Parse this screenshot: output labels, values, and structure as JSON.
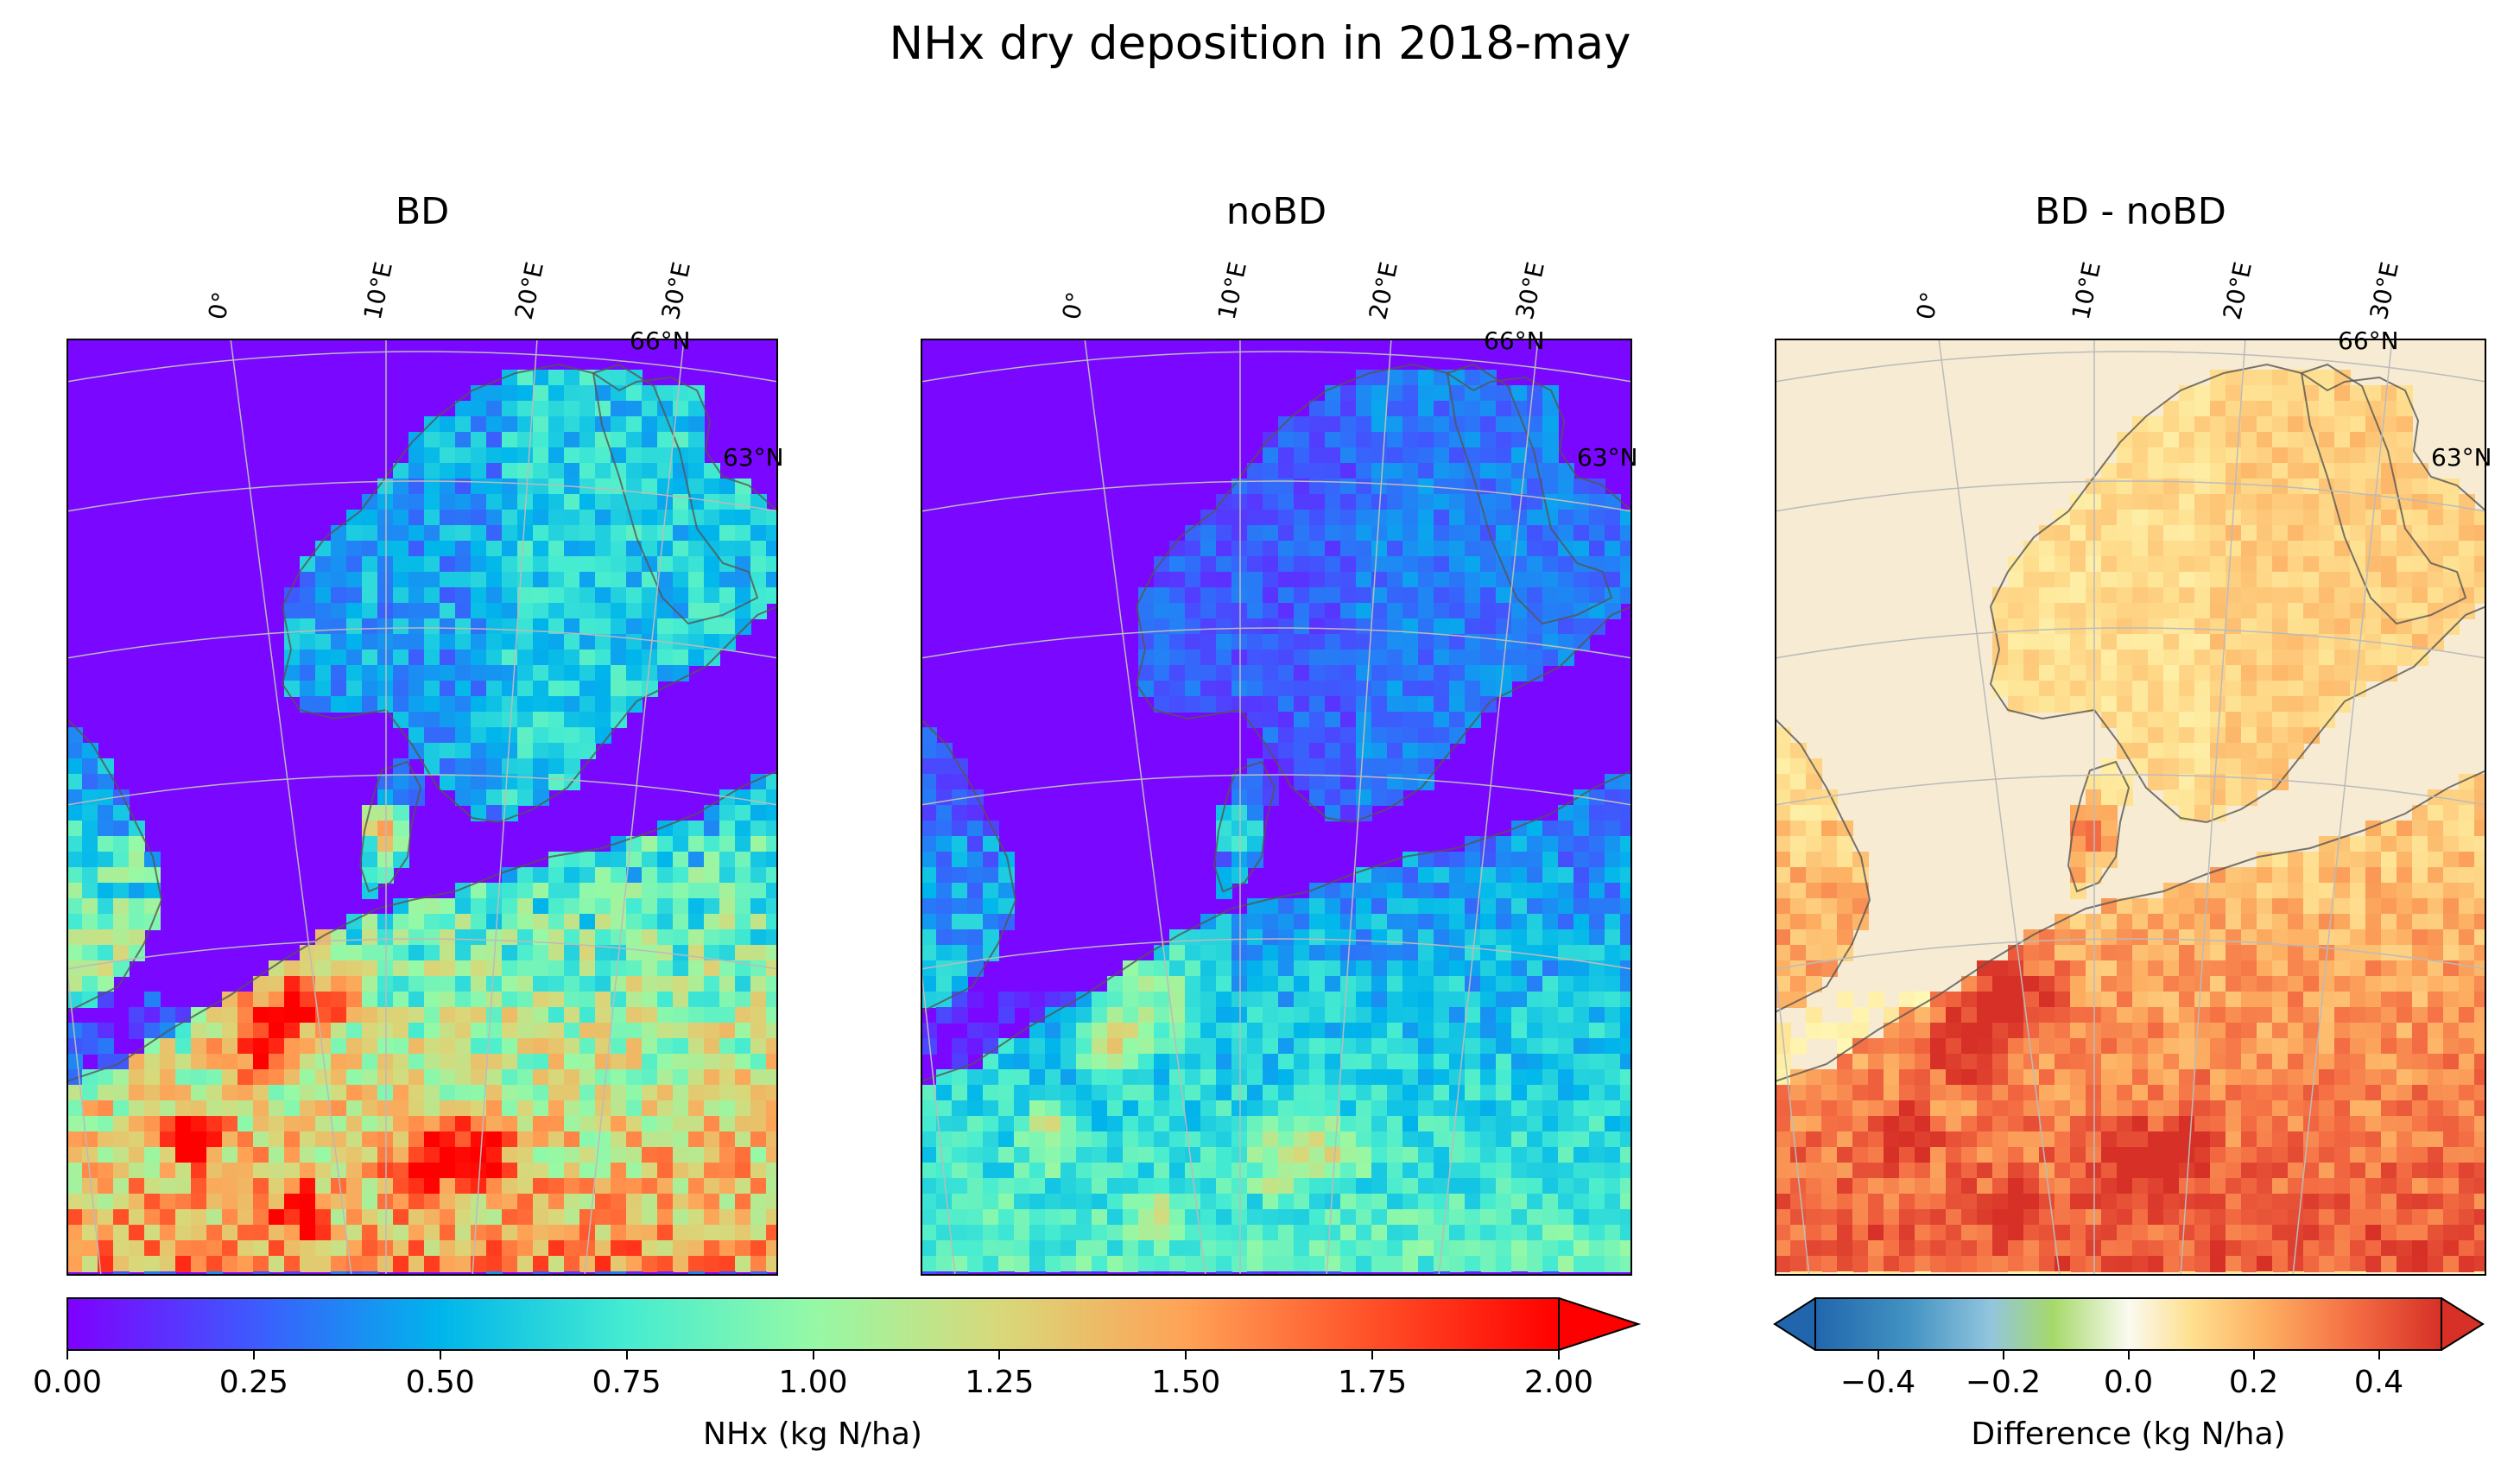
{
  "figure": {
    "title": "NHx dry deposition in 2018-may"
  },
  "panels": [
    {
      "id": "bd",
      "title": "BD",
      "colormap": "rainbow",
      "intensity": 1.0
    },
    {
      "id": "nobd",
      "title": "noBD",
      "colormap": "rainbow",
      "intensity": 0.55
    },
    {
      "id": "diff",
      "title": "BD - noBD",
      "colormap": "RdYlBu_r",
      "intensity": 1.0
    }
  ],
  "map_labels": {
    "lon": [
      "0°",
      "10°E",
      "20°E",
      "30°E"
    ],
    "lat": [
      "66°N",
      "63°N"
    ]
  },
  "colorbars": {
    "main": {
      "label": "NHx (kg N/ha)",
      "ticks": [
        "0.00",
        "0.25",
        "0.50",
        "0.75",
        "1.00",
        "1.25",
        "1.50",
        "1.75",
        "2.00"
      ],
      "range": [
        0,
        2
      ],
      "extend": "max"
    },
    "diff": {
      "label": "Difference (kg N/ha)",
      "ticks": [
        "−0.4",
        "−0.2",
        "0.0",
        "0.2",
        "0.4"
      ],
      "tick_values": [
        -0.4,
        -0.2,
        0.0,
        0.2,
        0.4
      ],
      "range": [
        -0.5,
        0.5
      ],
      "extend": "both"
    }
  },
  "colors": {
    "rainbow": [
      "#7f00ff",
      "#3e5afd",
      "#00b5eb",
      "#45ecd1",
      "#95f9a6",
      "#d8d87a",
      "#ffa256",
      "#ff5028",
      "#ff0000"
    ],
    "rdylbu_r": [
      "#2166ac",
      "#4393c3",
      "#92c5de",
      "#a6d96a",
      "#ffffbf",
      "#fee090",
      "#fdae61",
      "#f46d43",
      "#d73027"
    ],
    "land_outline": "#555555",
    "grid": "#bbbbbb"
  }
}
